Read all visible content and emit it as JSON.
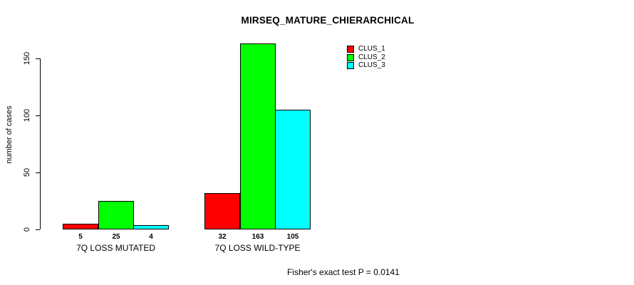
{
  "chart_data": {
    "type": "bar",
    "title": "MIRSEQ_MATURE_CHIERARCHICAL",
    "ylabel": "number of cases",
    "xlabel": "",
    "categories": [
      "7Q LOSS MUTATED",
      "7Q LOSS WILD-TYPE"
    ],
    "series": [
      {
        "name": "CLUS_1",
        "color": "#ff0000",
        "values": [
          5,
          32
        ]
      },
      {
        "name": "CLUS_2",
        "color": "#00ff00",
        "values": [
          25,
          163
        ]
      },
      {
        "name": "CLUS_3",
        "color": "#00ffff",
        "values": [
          4,
          105
        ]
      }
    ],
    "yticks": [
      0,
      50,
      100,
      150
    ],
    "ylim": [
      0,
      165
    ],
    "grid": false,
    "bar_value_labels_shown": true,
    "legend": {
      "position": "top-right",
      "entries": [
        "CLUS_1",
        "CLUS_2",
        "CLUS_3"
      ]
    },
    "annotation": "Fisher's exact test P = 0.0141",
    "colors": {
      "bar_border": "#000000",
      "axis": "#000000",
      "text": "#000000",
      "background": "#ffffff"
    }
  }
}
